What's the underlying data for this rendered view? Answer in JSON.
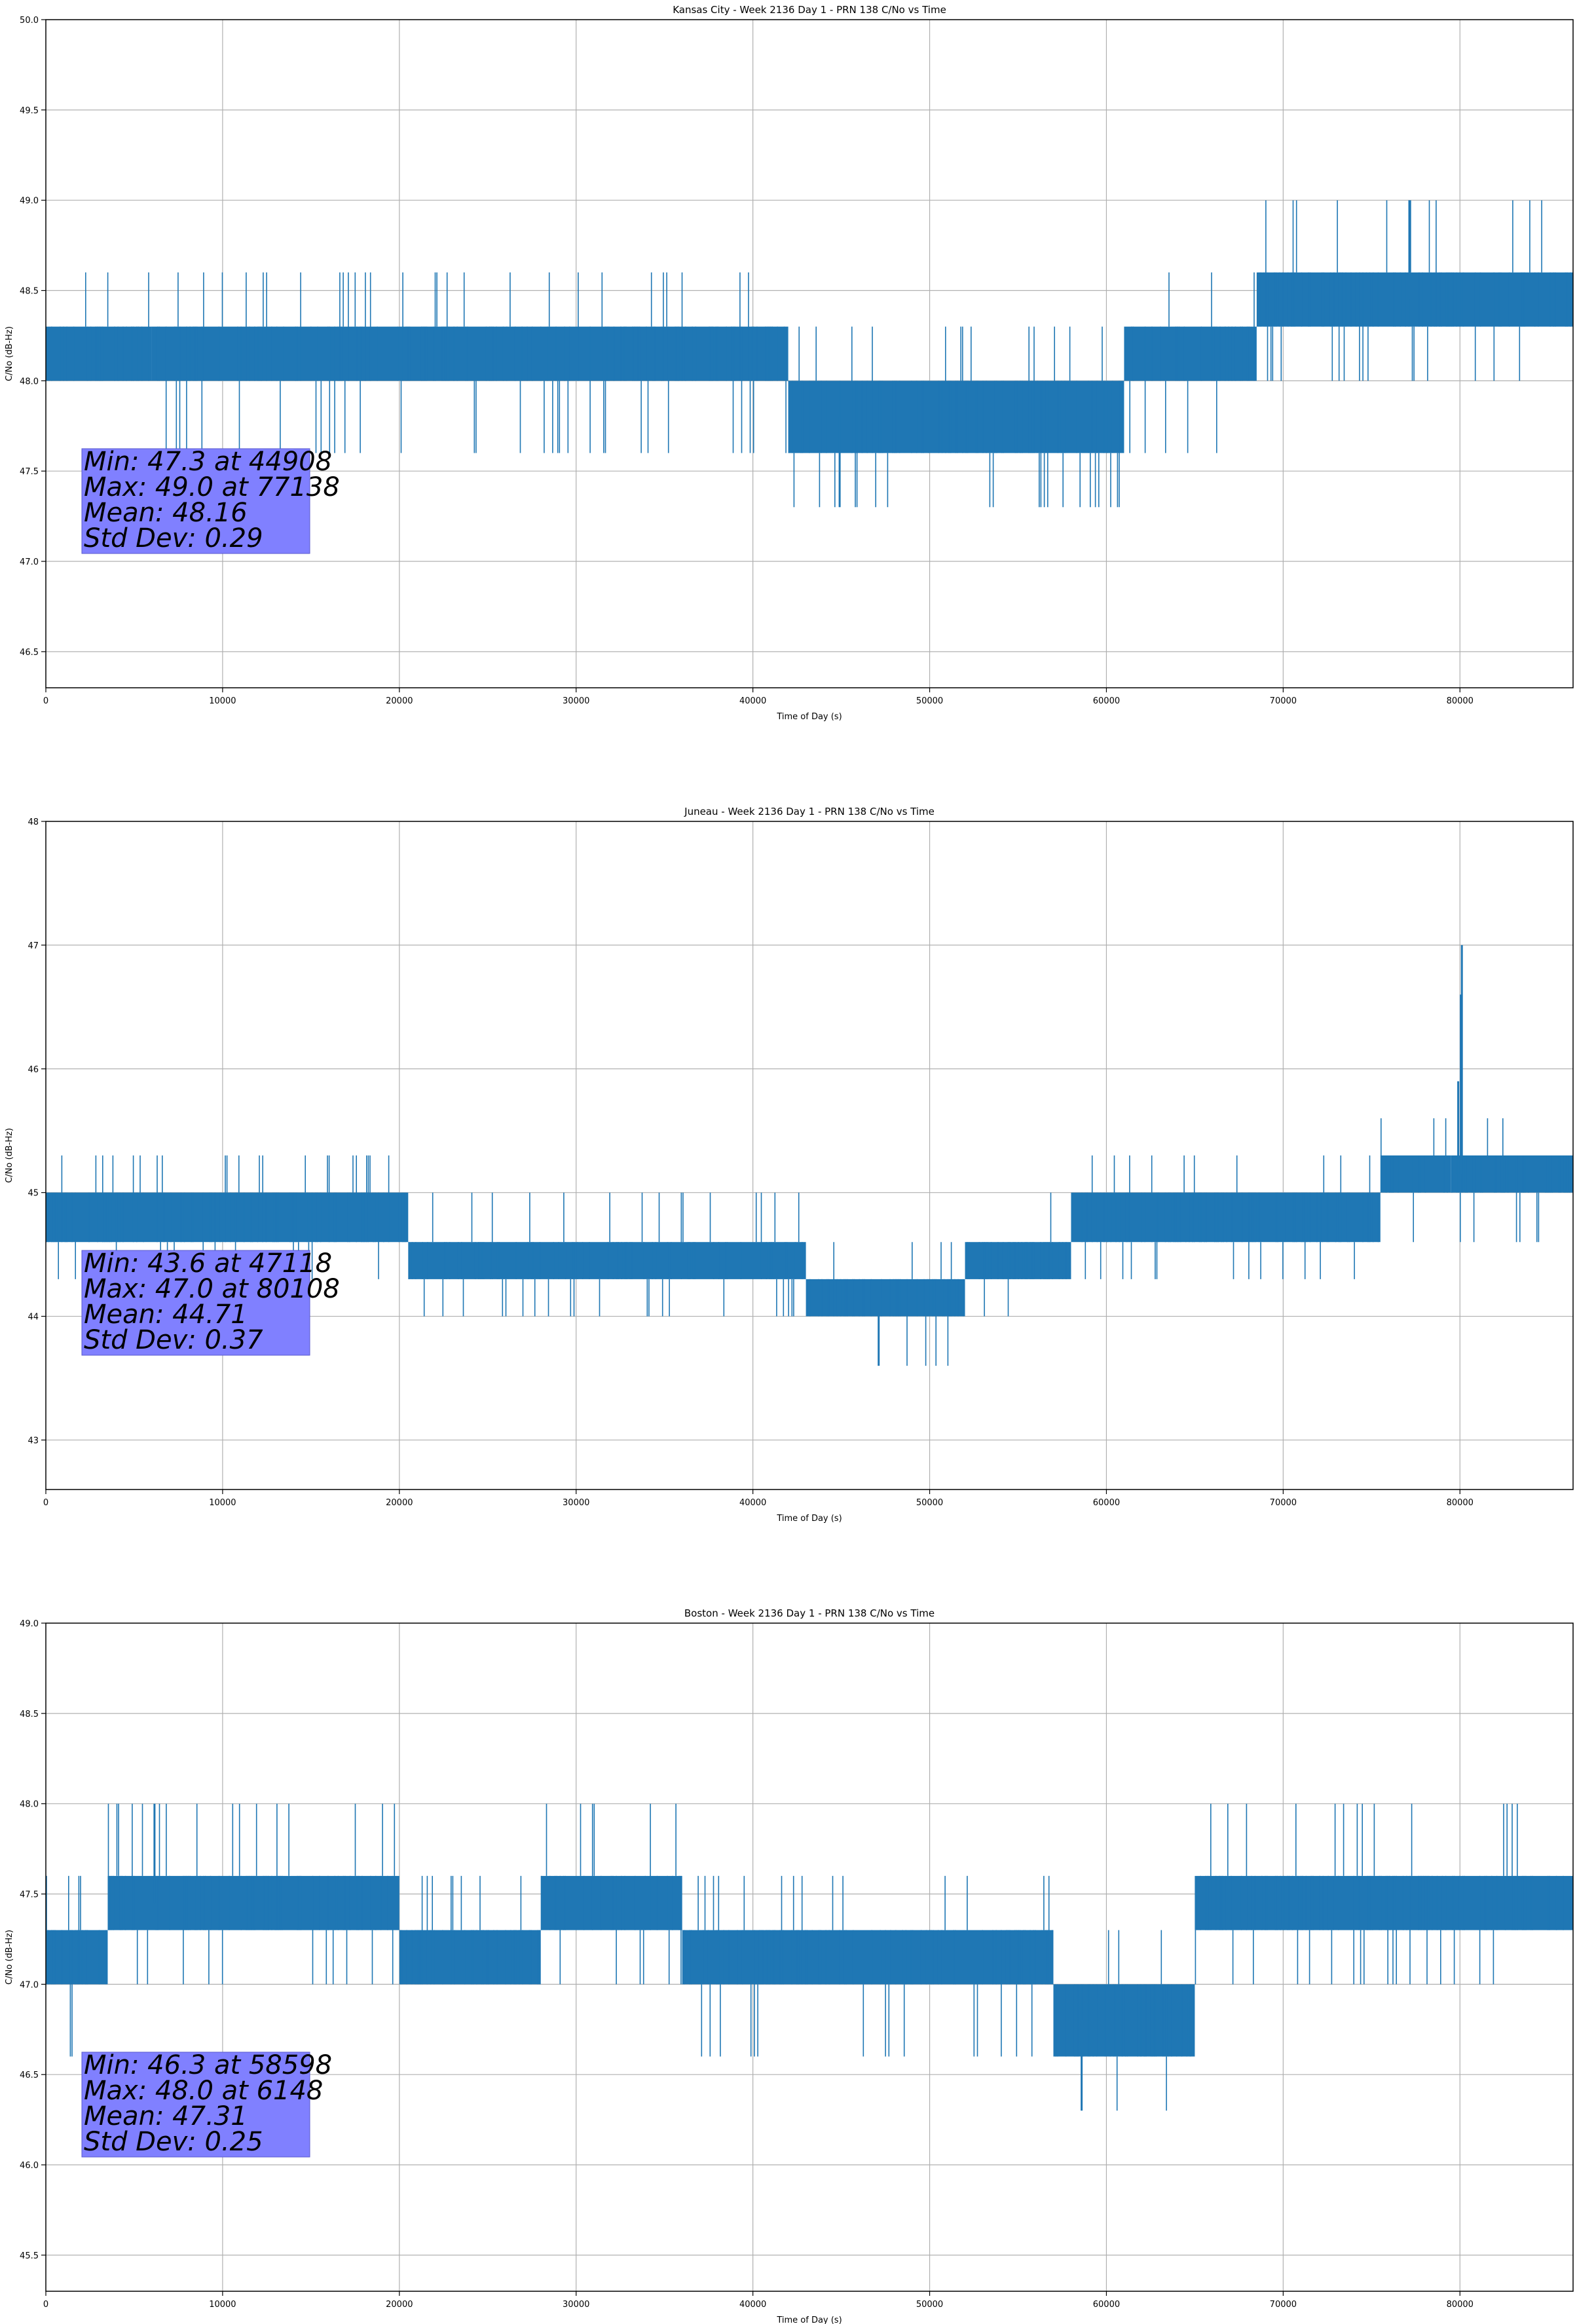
{
  "figure": {
    "series_color": "#1f77b4",
    "stats_box_color": "#8080ff",
    "grid_color": "#b0b0b0"
  },
  "chart_data": [
    {
      "type": "line",
      "title": "Kansas City - Week 2136 Day 1 - PRN 138 C/No vs Time",
      "xlabel": "Time of Day (s)",
      "ylabel": "C/No (dB-Hz)",
      "xlim": [
        0,
        86400
      ],
      "ylim": [
        46.3,
        50.0
      ],
      "xticks": [
        0,
        10000,
        20000,
        30000,
        40000,
        50000,
        60000,
        70000,
        80000
      ],
      "yticks": [
        46.5,
        47.0,
        47.5,
        48.0,
        48.5,
        49.0,
        49.5,
        50.0
      ],
      "ytick_decimals": 1,
      "grid": true,
      "stats": [
        "Min: 47.3 at 44908",
        "Max: 49.0 at 77138",
        "Mean: 48.16",
        "Std Dev: 0.29"
      ],
      "series": [
        {
          "name": "PRN 138 C/No",
          "segments": [
            {
              "x0": 0,
              "x1": 6000,
              "levels": [
                48.0,
                48.3
              ],
              "spikes": [
                48.6
              ]
            },
            {
              "x0": 6000,
              "x1": 42000,
              "levels": [
                48.0,
                48.3
              ],
              "spikes": [
                48.6,
                47.6
              ]
            },
            {
              "x0": 42000,
              "x1": 61000,
              "levels": [
                47.6,
                48.0
              ],
              "spikes": [
                48.3,
                47.3
              ]
            },
            {
              "x0": 61000,
              "x1": 68500,
              "levels": [
                48.0,
                48.3
              ],
              "spikes": [
                48.6,
                47.6
              ]
            },
            {
              "x0": 68500,
              "x1": 86400,
              "levels": [
                48.3,
                48.6
              ],
              "spikes": [
                49.0,
                48.0
              ]
            }
          ],
          "extremes": [
            [
              44908,
              47.3
            ],
            [
              77138,
              49.0
            ]
          ]
        }
      ]
    },
    {
      "type": "line",
      "title": "Juneau - Week 2136 Day 1 - PRN 138 C/No vs Time",
      "xlabel": "Time of Day (s)",
      "ylabel": "C/No (dB-Hz)",
      "xlim": [
        0,
        86400
      ],
      "ylim": [
        42.6,
        48.0
      ],
      "xticks": [
        0,
        10000,
        20000,
        30000,
        40000,
        50000,
        60000,
        70000,
        80000
      ],
      "yticks": [
        43,
        44,
        45,
        46,
        47,
        48
      ],
      "ytick_decimals": 0,
      "grid": true,
      "stats": [
        "Min: 43.6 at 47118",
        "Max: 47.0 at 80108",
        "Mean: 44.71",
        "Std Dev: 0.37"
      ],
      "series": [
        {
          "name": "PRN 138 C/No",
          "segments": [
            {
              "x0": 0,
              "x1": 20500,
              "levels": [
                44.6,
                45.0
              ],
              "spikes": [
                44.3,
                45.3
              ]
            },
            {
              "x0": 20500,
              "x1": 43000,
              "levels": [
                44.3,
                44.6
              ],
              "spikes": [
                45.0,
                44.0
              ]
            },
            {
              "x0": 43000,
              "x1": 52000,
              "levels": [
                44.0,
                44.3
              ],
              "spikes": [
                44.6,
                43.6
              ]
            },
            {
              "x0": 52000,
              "x1": 58000,
              "levels": [
                44.3,
                44.6
              ],
              "spikes": [
                45.0,
                44.0
              ]
            },
            {
              "x0": 58000,
              "x1": 75500,
              "levels": [
                44.6,
                45.0
              ],
              "spikes": [
                45.3,
                44.3
              ]
            },
            {
              "x0": 75500,
              "x1": 79500,
              "levels": [
                45.0,
                45.3
              ],
              "spikes": [
                44.6,
                45.6
              ]
            },
            {
              "x0": 79500,
              "x1": 86400,
              "levels": [
                45.0,
                45.3
              ],
              "spikes": [
                45.6,
                44.6
              ]
            }
          ],
          "extremes": [
            [
              47118,
              43.6
            ],
            [
              80108,
              47.0
            ],
            [
              80050,
              46.6
            ],
            [
              79900,
              45.9
            ]
          ]
        }
      ]
    },
    {
      "type": "line",
      "title": "Boston - Week 2136 Day 1 - PRN 138 C/No vs Time",
      "xlabel": "Time of Day (s)",
      "ylabel": "C/No (dB-Hz)",
      "xlim": [
        0,
        86400
      ],
      "ylim": [
        45.3,
        49.0
      ],
      "xticks": [
        0,
        10000,
        20000,
        30000,
        40000,
        50000,
        60000,
        70000,
        80000
      ],
      "yticks": [
        45.5,
        46.0,
        46.5,
        47.0,
        47.5,
        48.0,
        48.5,
        49.0
      ],
      "ytick_decimals": 1,
      "grid": true,
      "stats": [
        "Min: 46.3 at 58598",
        "Max: 48.0 at 6148",
        "Mean: 47.31",
        "Std Dev: 0.25"
      ],
      "series": [
        {
          "name": "PRN 138 C/No",
          "segments": [
            {
              "x0": 0,
              "x1": 3500,
              "levels": [
                47.0,
                47.3
              ],
              "spikes": [
                47.6,
                46.6
              ]
            },
            {
              "x0": 3500,
              "x1": 20000,
              "levels": [
                47.3,
                47.6
              ],
              "spikes": [
                48.0,
                47.0
              ]
            },
            {
              "x0": 20000,
              "x1": 28000,
              "levels": [
                47.0,
                47.3
              ],
              "spikes": [
                47.6
              ]
            },
            {
              "x0": 28000,
              "x1": 36000,
              "levels": [
                47.3,
                47.6
              ],
              "spikes": [
                48.0,
                47.0
              ]
            },
            {
              "x0": 36000,
              "x1": 57000,
              "levels": [
                47.0,
                47.3
              ],
              "spikes": [
                47.6,
                46.6
              ]
            },
            {
              "x0": 57000,
              "x1": 65000,
              "levels": [
                46.6,
                47.0
              ],
              "spikes": [
                47.3,
                46.3
              ]
            },
            {
              "x0": 65000,
              "x1": 86400,
              "levels": [
                47.3,
                47.6
              ],
              "spikes": [
                48.0,
                47.0
              ]
            }
          ],
          "extremes": [
            [
              58598,
              46.3
            ],
            [
              6148,
              48.0
            ]
          ]
        }
      ]
    }
  ]
}
